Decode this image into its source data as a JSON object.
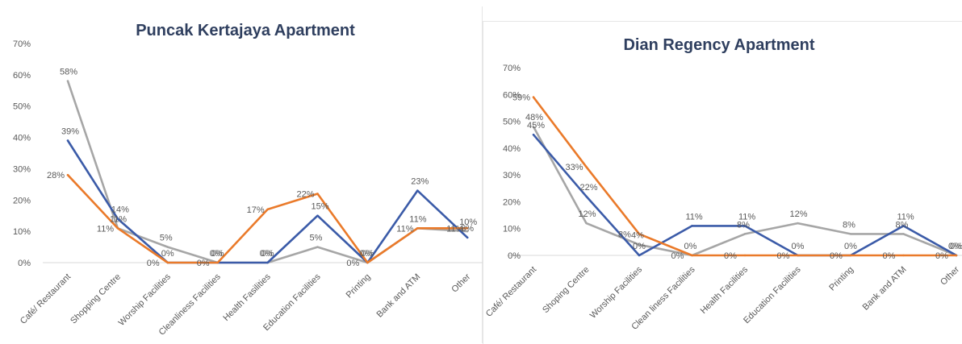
{
  "colors": {
    "blue": "#3b5ba8",
    "orange": "#ea7a2a",
    "gray": "#a6a6a6",
    "axis": "#d9d9d9",
    "text": "#595959",
    "title": "#2f3f5f"
  },
  "chart_data": [
    {
      "type": "line",
      "title": "Puncak Kertajaya Apartment",
      "xlabel": "",
      "ylabel": "",
      "ylim": [
        0,
        70
      ],
      "yticks": [
        "0%",
        "10%",
        "20%",
        "30%",
        "40%",
        "50%",
        "60%",
        "70%"
      ],
      "categories": [
        "Café/ Restaurant",
        "Shopping Centre",
        "Worship Facilities",
        "Cleanliness Facilities",
        "Health Fasilities",
        "Education Facilities",
        "Printing",
        "Bank and ATM",
        "Other"
      ],
      "grid": false,
      "series": [
        {
          "color": "blue",
          "values": [
            39,
            14,
            0,
            0,
            0,
            15,
            0,
            23,
            8
          ],
          "labels": [
            "39%",
            "14%",
            "0%",
            "0%",
            "0%",
            "15%",
            "0%",
            "23%",
            "8%"
          ]
        },
        {
          "color": "orange",
          "values": [
            28,
            11,
            0,
            0,
            17,
            22,
            0,
            11,
            11
          ],
          "labels": [
            "28%",
            "11%",
            "0%",
            "0%",
            "17%",
            "22%",
            "0%",
            "11%",
            "11%"
          ]
        },
        {
          "color": "gray",
          "values": [
            58,
            11,
            5,
            0,
            0,
            5,
            0,
            11,
            10
          ],
          "labels": [
            "58%",
            "11%",
            "5%",
            "0%",
            "0%",
            "5%",
            "0%",
            "11%",
            "10%"
          ]
        }
      ]
    },
    {
      "type": "line",
      "title": "Dian Regency Apartment",
      "xlabel": "",
      "ylabel": "",
      "ylim": [
        0,
        70
      ],
      "yticks": [
        "0%",
        "10%",
        "20%",
        "30%",
        "40%",
        "50%",
        "60%",
        "70%"
      ],
      "categories": [
        "Café/ Restaurant",
        "Shoping Centre",
        "Worship Facilities",
        "Clean liness Facilities",
        "Health Facilities",
        "Education Facilities",
        "Printing",
        "Bank and ATM",
        "Other"
      ],
      "grid": false,
      "series": [
        {
          "color": "blue",
          "values": [
            45,
            22,
            0,
            11,
            11,
            0,
            0,
            11,
            0
          ],
          "labels": [
            "45%",
            "22%",
            "0%",
            "11%",
            "11%",
            "0%",
            "0%",
            "11%",
            "0%"
          ]
        },
        {
          "color": "orange",
          "values": [
            59,
            33,
            8,
            0,
            0,
            0,
            0,
            0,
            0
          ],
          "labels": [
            "59%",
            "33%",
            "8%",
            "0%",
            "0%",
            "0%",
            "0%",
            "0%",
            "0%"
          ]
        },
        {
          "color": "gray",
          "values": [
            48,
            12,
            4,
            0,
            8,
            12,
            8,
            8,
            0
          ],
          "labels": [
            "48%",
            "12%",
            "4%",
            "0%",
            "8%",
            "12%",
            "8%",
            "8%",
            "0%"
          ]
        }
      ]
    }
  ]
}
